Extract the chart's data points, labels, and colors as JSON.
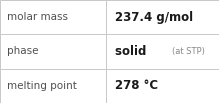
{
  "rows": [
    {
      "label": "molar mass",
      "value": "237.4 g/mol",
      "suffix": null,
      "suffix_text": null
    },
    {
      "label": "phase",
      "value": "solid",
      "suffix": true,
      "suffix_text": "(at STP)"
    },
    {
      "label": "melting point",
      "value": "278 °C",
      "suffix": null,
      "suffix_text": null
    }
  ],
  "col_split": 0.485,
  "background_color": "#ffffff",
  "border_color": "#c8c8c8",
  "label_color": "#505050",
  "value_color": "#1a1a1a",
  "suffix_color": "#888888",
  "label_fontsize": 7.5,
  "value_fontsize": 8.5,
  "suffix_fontsize": 6.0
}
